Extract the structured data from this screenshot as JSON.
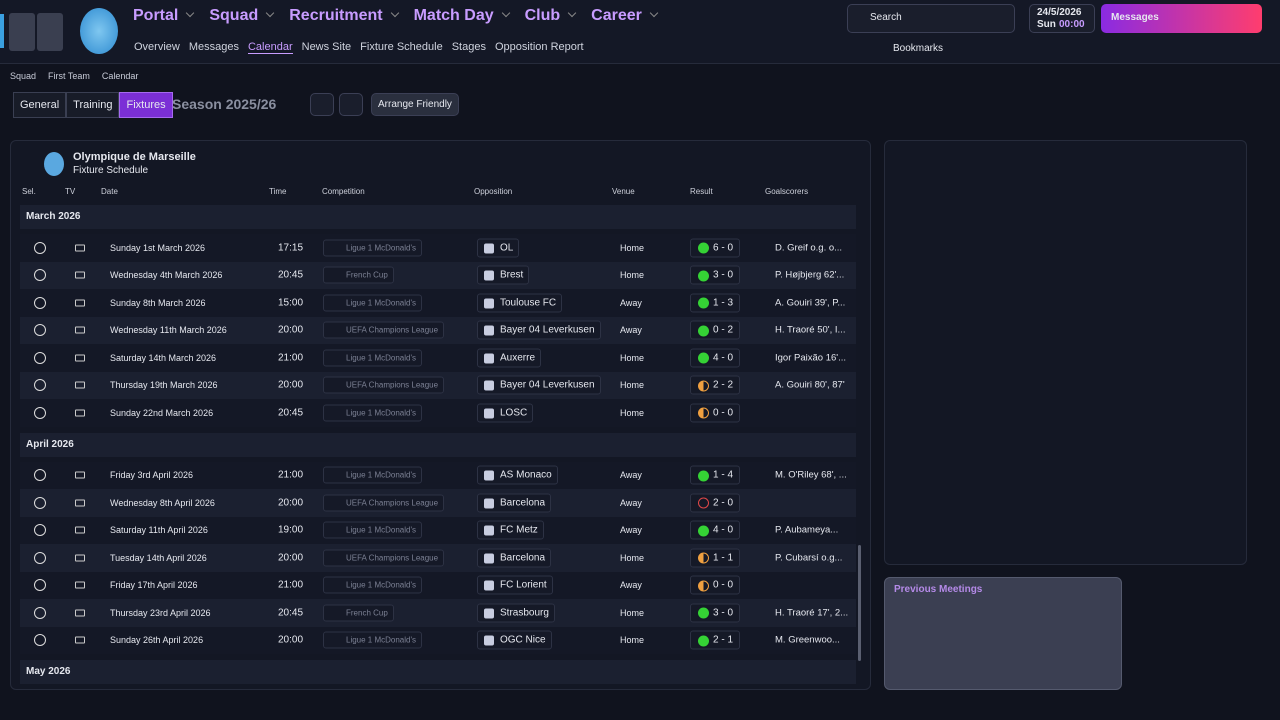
{
  "header": {
    "nav": [
      "Portal",
      "Squad",
      "Recruitment",
      "Match Day",
      "Club",
      "Career"
    ],
    "subnav": [
      "Overview",
      "Messages",
      "Calendar",
      "News Site",
      "Fixture Schedule",
      "Stages",
      "Opposition Report"
    ],
    "search": "Search",
    "date": "24/5/2026",
    "day": "Sun",
    "time": "00:00",
    "messages": "Messages",
    "bookmarks": "Bookmarks"
  },
  "breadcrumb": [
    "Squad",
    "First Team",
    "Calendar"
  ],
  "tabs": [
    "General",
    "Training",
    "Fixtures"
  ],
  "season": "Season 2025/26",
  "arrange": "Arrange Friendly",
  "panel": {
    "club": "Olympique de Marseille",
    "subtitle": "Fixture Schedule",
    "columns": [
      "Sel.",
      "TV",
      "Date",
      "Time",
      "Competition",
      "Opposition",
      "Venue",
      "Result",
      "Goalscorers"
    ],
    "groups": [
      {
        "month": "March 2026",
        "fixtures": [
          {
            "date": "Sunday 1st March 2026",
            "time": "17:15",
            "competition": "Ligue 1 McDonald's",
            "opposition": "OL",
            "venue": "Home",
            "result": "6 - 0",
            "scorers": "D. Greif o.g. o...",
            "result_color": "#35d235",
            "result_style": "filled"
          },
          {
            "date": "Wednesday 4th March 2026",
            "time": "20:45",
            "competition": "French Cup",
            "opposition": "Brest",
            "venue": "Home",
            "result": "3 - 0",
            "scorers": "P. Højbjerg 62'...",
            "result_color": "#35d235",
            "result_style": "filled"
          },
          {
            "date": "Sunday 8th March 2026",
            "time": "15:00",
            "competition": "Ligue 1 McDonald's",
            "opposition": "Toulouse FC",
            "venue": "Away",
            "result": "1 - 3",
            "scorers": "A. Gouiri 39', P...",
            "result_color": "#35d235",
            "result_style": "filled"
          },
          {
            "date": "Wednesday 11th March 2026",
            "time": "20:00",
            "competition": "UEFA Champions League",
            "opposition": "Bayer 04 Leverkusen",
            "venue": "Away",
            "result": "0 - 2",
            "scorers": "H. Traoré 50', I...",
            "result_color": "#35d235",
            "result_style": "filled"
          },
          {
            "date": "Saturday 14th March 2026",
            "time": "21:00",
            "competition": "Ligue 1 McDonald's",
            "opposition": "Auxerre",
            "venue": "Home",
            "result": "4 - 0",
            "scorers": "Igor Paixão 16'...",
            "result_color": "#35d235",
            "result_style": "filled"
          },
          {
            "date": "Thursday 19th March 2026",
            "time": "20:00",
            "competition": "UEFA Champions League",
            "opposition": "Bayer 04 Leverkusen",
            "venue": "Home",
            "result": "2 - 2",
            "scorers": "A. Gouiri 80', 87'",
            "result_color": "#f0a040",
            "result_style": "half"
          },
          {
            "date": "Sunday 22nd March 2026",
            "time": "20:45",
            "competition": "Ligue 1 McDonald's",
            "opposition": "LOSC",
            "venue": "Home",
            "result": "0 - 0",
            "result_color": "#f0a040",
            "result_style": "half"
          }
        ]
      },
      {
        "month": "April 2026",
        "fixtures": [
          {
            "date": "Friday 3rd April 2026",
            "time": "21:00",
            "competition": "Ligue 1 McDonald's",
            "opposition": "AS Monaco",
            "venue": "Away",
            "result": "1 - 4",
            "scorers": "M. O'Riley 68', ...",
            "result_color": "#35d235",
            "result_style": "filled"
          },
          {
            "date": "Wednesday 8th April 2026",
            "time": "20:00",
            "competition": "UEFA Champions League",
            "opposition": "Barcelona",
            "venue": "Away",
            "result": "2 - 0",
            "result_color": "#e04848",
            "result_style": "ring"
          },
          {
            "date": "Saturday 11th April 2026",
            "time": "19:00",
            "competition": "Ligue 1 McDonald's",
            "opposition": "FC Metz",
            "venue": "Away",
            "result": "4 - 0",
            "scorers": "P. Aubameya...",
            "result_color": "#35d235",
            "result_style": "filled"
          },
          {
            "date": "Tuesday 14th April 2026",
            "time": "20:00",
            "competition": "UEFA Champions League",
            "opposition": "Barcelona",
            "venue": "Home",
            "result": "1 - 1",
            "scorers": "P. Cubarsí o.g...",
            "result_color": "#f0a040",
            "result_style": "half"
          },
          {
            "date": "Friday 17th April 2026",
            "time": "21:00",
            "competition": "Ligue 1 McDonald's",
            "opposition": "FC Lorient",
            "venue": "Away",
            "result": "0 - 0",
            "result_color": "#f0a040",
            "result_style": "half"
          },
          {
            "date": "Thursday 23rd April 2026",
            "time": "20:45",
            "competition": "French Cup",
            "opposition": "Strasbourg",
            "venue": "Home",
            "result": "3 - 0",
            "scorers": "H. Traoré 17', 2...",
            "result_color": "#35d235",
            "result_style": "filled"
          },
          {
            "date": "Sunday 26th April 2026",
            "time": "20:00",
            "competition": "Ligue 1 McDonald's",
            "opposition": "OGC Nice",
            "venue": "Home",
            "result": "2 - 1",
            "scorers": "M. Greenwoo...",
            "result_color": "#35d235",
            "result_style": "filled"
          }
        ]
      },
      {
        "month": "May 2026",
        "fixtures": []
      }
    ]
  },
  "side": {
    "title": "Previous Meetings"
  }
}
